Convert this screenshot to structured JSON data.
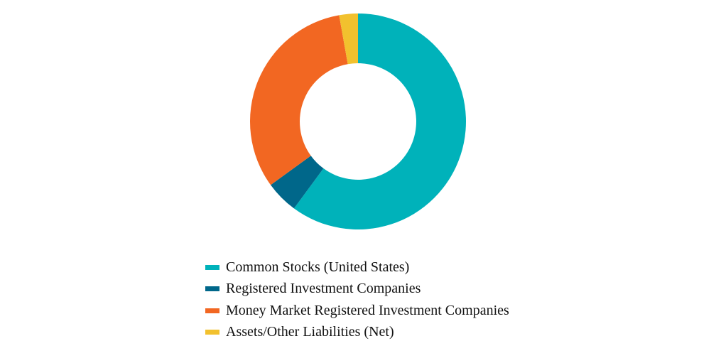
{
  "chart_data": {
    "type": "pie",
    "donut": true,
    "title": "",
    "series": [
      {
        "name": "Common Stocks (United States)",
        "value": 60.1,
        "color": "#00B2BA",
        "icon": "teal-square-swatch"
      },
      {
        "name": "Registered Investment Companies",
        "value": 4.9,
        "color": "#00678A",
        "icon": "dark-blue-square-swatch"
      },
      {
        "name": "Money Market Registered Investment Companies",
        "value": 32.2,
        "color": "#F26722",
        "icon": "orange-square-swatch"
      },
      {
        "name": "Assets/Other Liabilities (Net)",
        "value": 2.8,
        "color": "#F2C12E",
        "icon": "yellow-square-swatch"
      }
    ],
    "legend_position": "bottom",
    "units": "%"
  }
}
